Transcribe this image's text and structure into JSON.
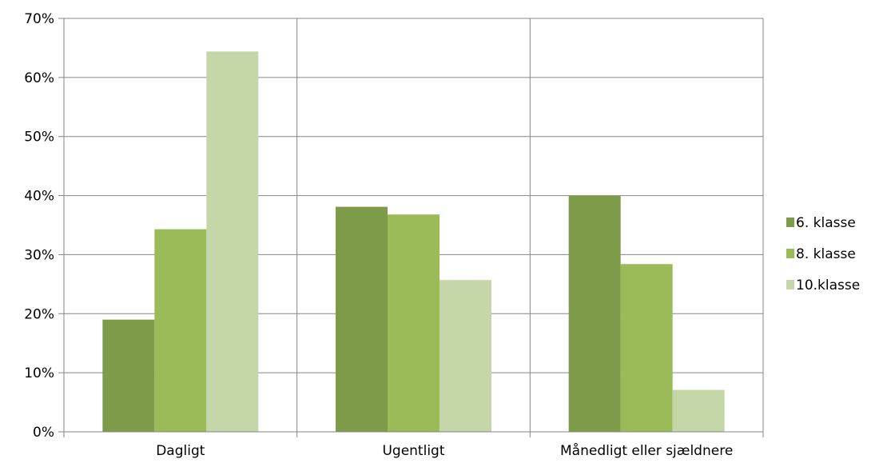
{
  "chart_data": {
    "type": "bar",
    "title": "",
    "xlabel": "",
    "ylabel": "",
    "categories": [
      "Dagligt",
      "Ugentligt",
      "Månedligt eller sjældnere"
    ],
    "series": [
      {
        "name": "6. klasse",
        "values": [
          19,
          38.1,
          40
        ],
        "color": "#7e9b4a"
      },
      {
        "name": "8. klasse",
        "values": [
          34.3,
          36.8,
          28.4
        ],
        "color": "#9bbb59"
      },
      {
        "name": "10.klasse",
        "values": [
          64.4,
          25.7,
          7.1
        ],
        "color": "#c5d6a8"
      }
    ],
    "ylim": [
      0,
      70
    ],
    "yticks": [
      0,
      10,
      20,
      30,
      40,
      50,
      60,
      70
    ],
    "ytick_labels": [
      "0%",
      "10%",
      "20%",
      "30%",
      "40%",
      "50%",
      "60%",
      "70%"
    ],
    "grid": true,
    "vertical_gridlines": true,
    "legend_position": "right",
    "gridline_color": "#868686"
  }
}
